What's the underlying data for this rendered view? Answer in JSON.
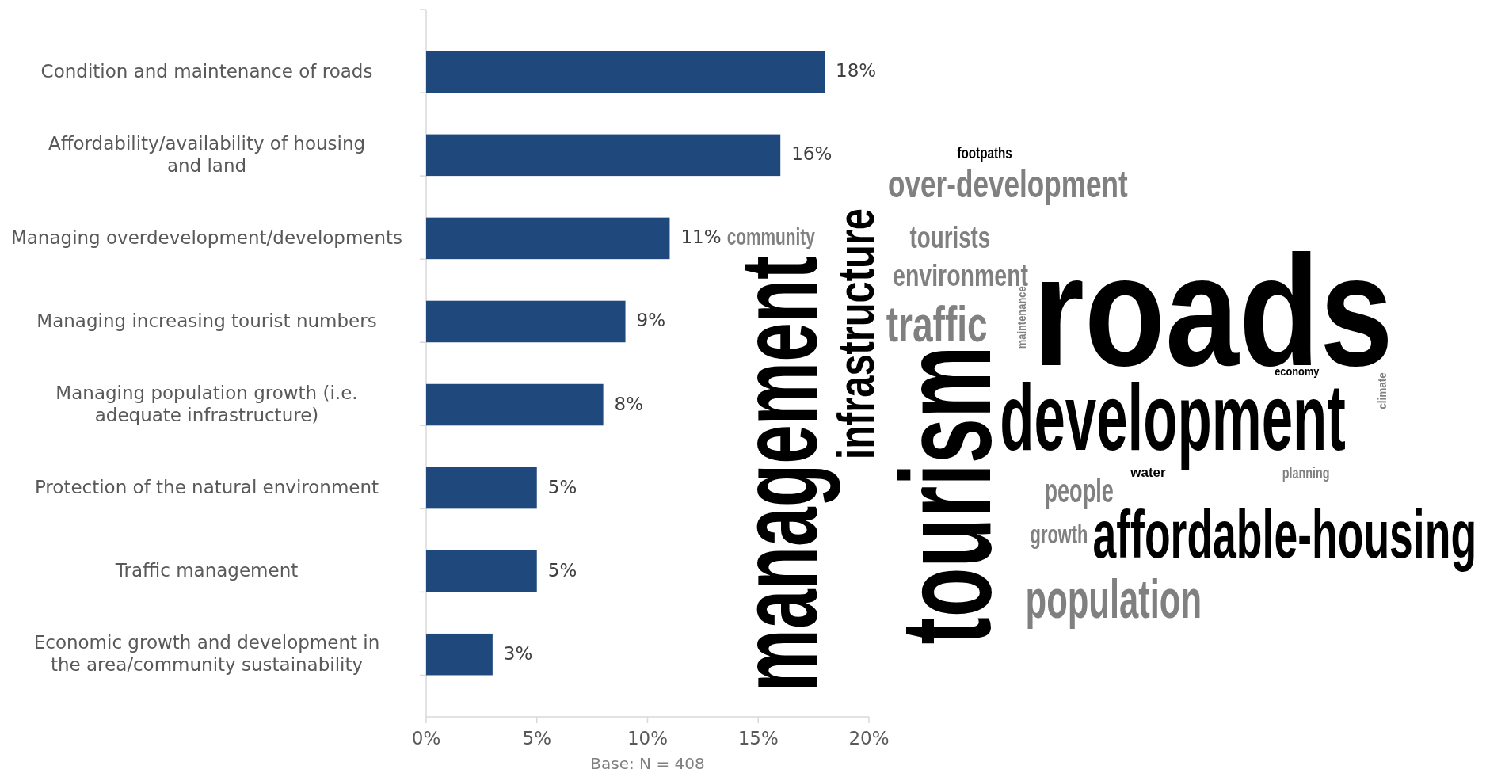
{
  "chart_data": [
    {
      "type": "bar",
      "orientation": "horizontal",
      "categories": [
        "Condition and maintenance of roads",
        "Affordability/availability of housing and land",
        "Managing overdevelopment/developments",
        "Managing increasing tourist numbers",
        "Managing population growth (i.e. adequate infrastructure)",
        "Protection of the natural environment",
        "Traffic management",
        "Economic growth and development in the area/community sustainability"
      ],
      "values": [
        18,
        16,
        11,
        9,
        8,
        5,
        5,
        3
      ],
      "value_labels": [
        "18%",
        "16%",
        "11%",
        "9%",
        "8%",
        "5%",
        "5%",
        "3%"
      ],
      "color": "#1f497d",
      "xlim": [
        0,
        20
      ],
      "xticks": [
        {
          "value": 0,
          "label": "0%"
        },
        {
          "value": 5,
          "label": "5%"
        },
        {
          "value": 10,
          "label": "10%"
        },
        {
          "value": 15,
          "label": "15%"
        },
        {
          "value": 20,
          "label": "20%"
        }
      ],
      "grid": false,
      "annotations": [
        "Base: N = 408"
      ]
    },
    {
      "type": "other",
      "annotations": [
        "footpaths",
        "over-development",
        "roads",
        "community",
        "tourists",
        "environment",
        "traffic",
        "management",
        "infrastructure",
        "tourism",
        "maintenance",
        "development",
        "economy",
        "climate",
        "water",
        "planning",
        "people",
        "growth",
        "affordable-housing",
        "population"
      ],
      "colors": [
        "#000000",
        "#808080",
        "#000000",
        "#808080",
        "#808080",
        "#808080",
        "#808080",
        "#000000",
        "#000000",
        "#000000",
        "#808080",
        "#000000",
        "#000000",
        "#808080",
        "#000000",
        "#808080",
        "#808080",
        "#808080",
        "#000000",
        "#808080"
      ]
    }
  ]
}
